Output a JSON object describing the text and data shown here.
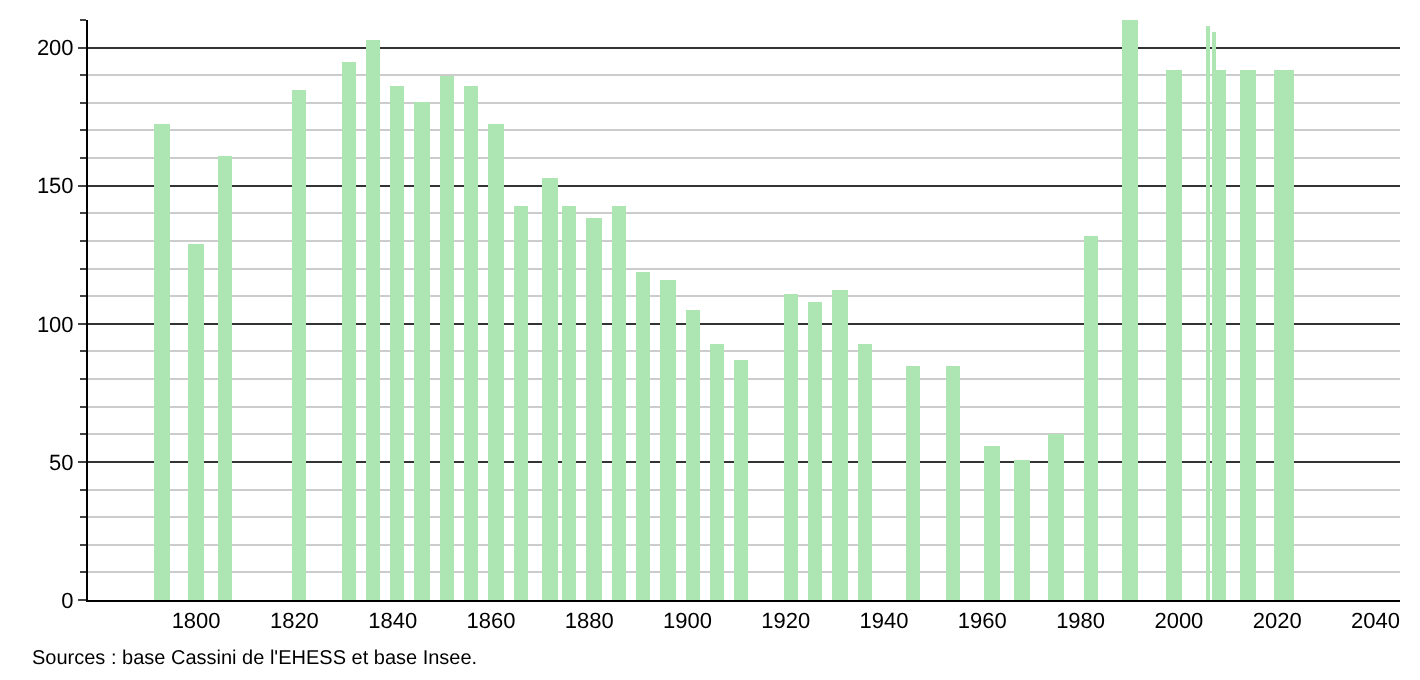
{
  "chart_data": {
    "type": "bar",
    "x": [
      1793,
      1800,
      1806,
      1821,
      1831,
      1836,
      1841,
      1846,
      1851,
      1856,
      1861,
      1866,
      1872,
      1876,
      1881,
      1886,
      1891,
      1896,
      1901,
      1906,
      1911,
      1921,
      1926,
      1931,
      1936,
      1946,
      1954,
      1962,
      1968,
      1975,
      1982,
      1990,
      1999,
      2006,
      2007,
      2008,
      2009,
      2014,
      2020,
      2021,
      2022,
      2023
    ],
    "values": [
      172,
      129,
      161,
      185,
      195,
      203,
      186,
      180,
      190,
      186,
      172,
      143,
      153,
      143,
      138,
      143,
      119,
      116,
      105,
      93,
      87,
      111,
      108,
      112,
      93,
      85,
      85,
      56,
      51,
      60,
      132,
      210,
      192,
      208,
      206,
      192,
      192,
      192,
      192,
      192,
      192,
      192
    ],
    "color": "#ade5b3",
    "xlim": [
      1778,
      2045
    ],
    "xticks": [
      1800,
      1820,
      1840,
      1860,
      1880,
      1900,
      1920,
      1940,
      1960,
      1980,
      2000,
      2020,
      2040
    ],
    "ylim": [
      0,
      210
    ],
    "yticks": [
      0,
      50,
      100,
      150,
      200
    ],
    "grid": "y",
    "annotations": [
      "Sources : base Cassini de l'EHESS et base Insee."
    ]
  }
}
